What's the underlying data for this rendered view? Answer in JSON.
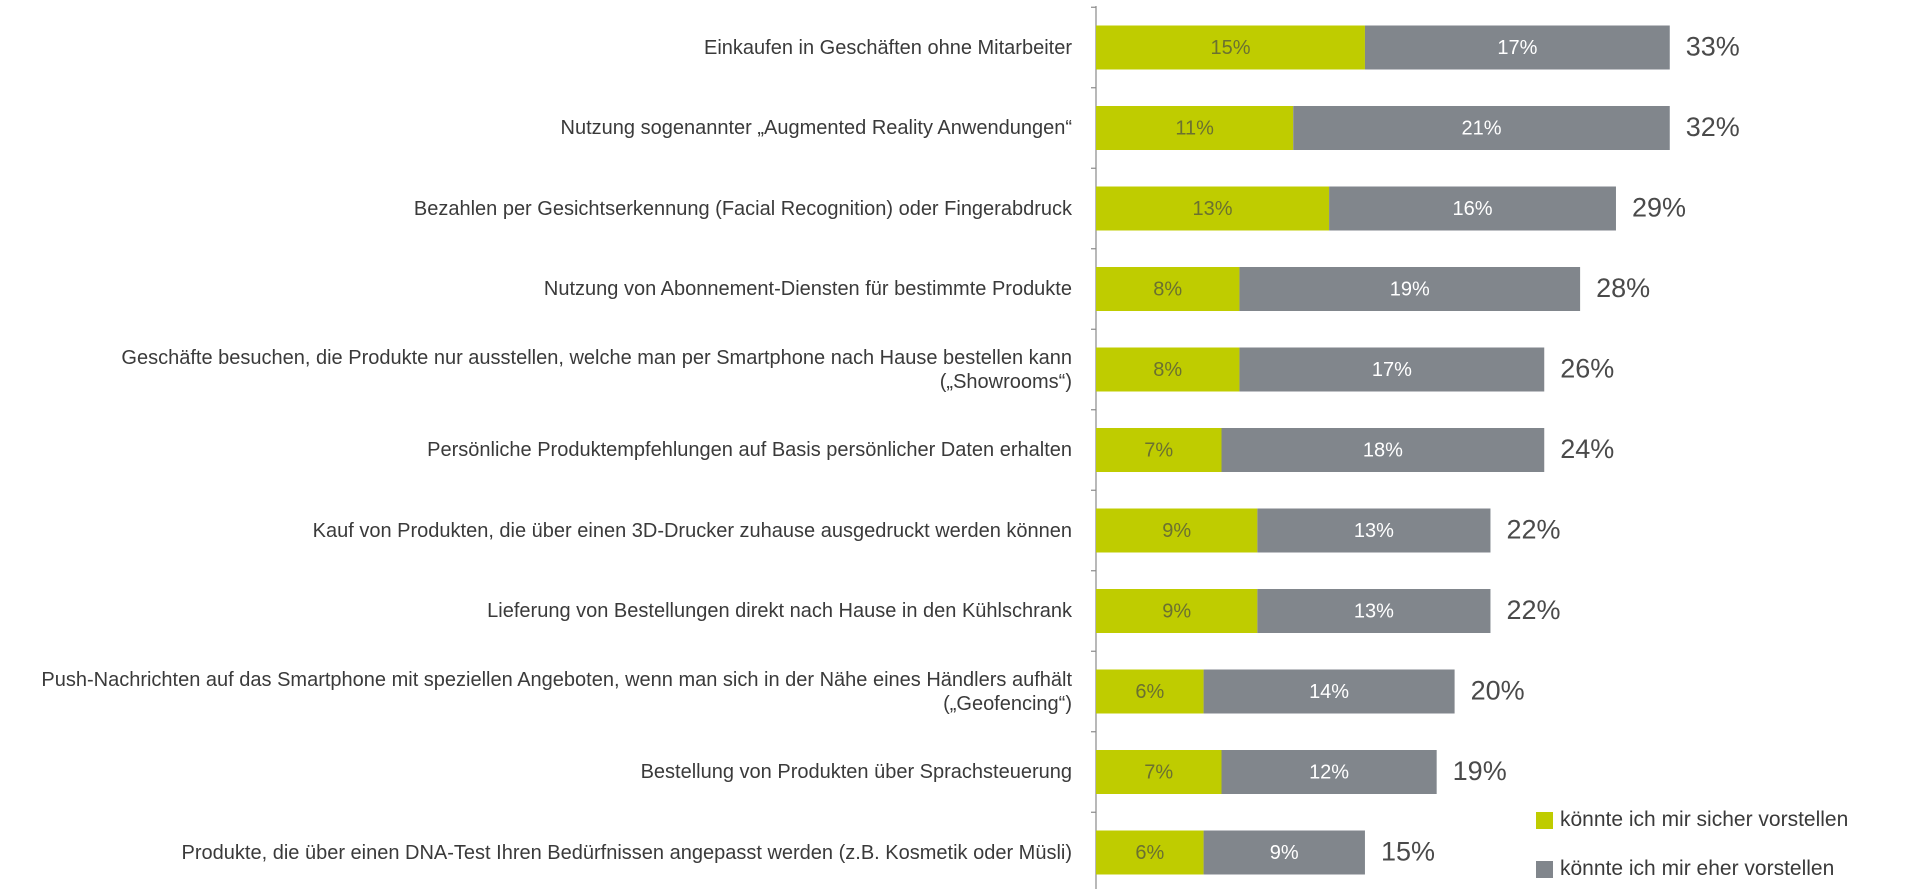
{
  "chart_data": {
    "type": "stacked_bar_horizontal",
    "categories": [
      "Einkaufen in Geschäften ohne Mitarbeiter",
      "Nutzung sogenannter „Augmented Reality Anwendungen“",
      "Bezahlen per Gesichtserkennung (Facial Recognition) oder Fingerabdruck",
      "Nutzung von Abonnement-Diensten für bestimmte Produkte",
      "Geschäfte besuchen, die Produkte nur ausstellen, welche man per Smartphone nach Hause bestellen kann („Showrooms“)",
      "Persönliche Produktempfehlungen auf Basis persönlicher Daten erhalten",
      "Kauf von Produkten, die über einen 3D-Drucker zuhause ausgedruckt werden können",
      "Lieferung von Bestellungen direkt nach Hause in den Kühlschrank",
      "Push-Nachrichten auf das Smartphone mit speziellen Angeboten, wenn man sich in der Nähe eines Händlers aufhält („Geofencing“)",
      "Bestellung von Produkten über Sprachsteuerung",
      "Produkte, die über einen DNA-Test Ihren Bedürfnissen angepasst werden (z.B. Kosmetik oder Müsli)"
    ],
    "series": [
      {
        "name": "könnte ich mir sicher vorstellen",
        "color": "#bfcc00",
        "values": [
          15,
          11,
          13,
          8,
          8,
          7,
          9,
          9,
          6,
          7,
          6
        ],
        "value_labels": [
          "15%",
          "11%",
          "13%",
          "8%",
          "8%",
          "7%",
          "9%",
          "9%",
          "6%",
          "7%",
          "6%"
        ]
      },
      {
        "name": "könnte ich mir eher vorstellen",
        "color": "#81868c",
        "values": [
          17,
          21,
          16,
          19,
          17,
          18,
          13,
          13,
          14,
          12,
          9
        ],
        "value_labels": [
          "17%",
          "21%",
          "16%",
          "19%",
          "17%",
          "18%",
          "13%",
          "13%",
          "14%",
          "12%",
          "9%"
        ]
      }
    ],
    "totals": [
      33,
      32,
      29,
      28,
      26,
      24,
      22,
      22,
      20,
      19,
      15
    ],
    "total_labels": [
      "33%",
      "32%",
      "29%",
      "28%",
      "26%",
      "24%",
      "22%",
      "22%",
      "20%",
      "19%",
      "15%"
    ],
    "legend": "bottom-right"
  }
}
